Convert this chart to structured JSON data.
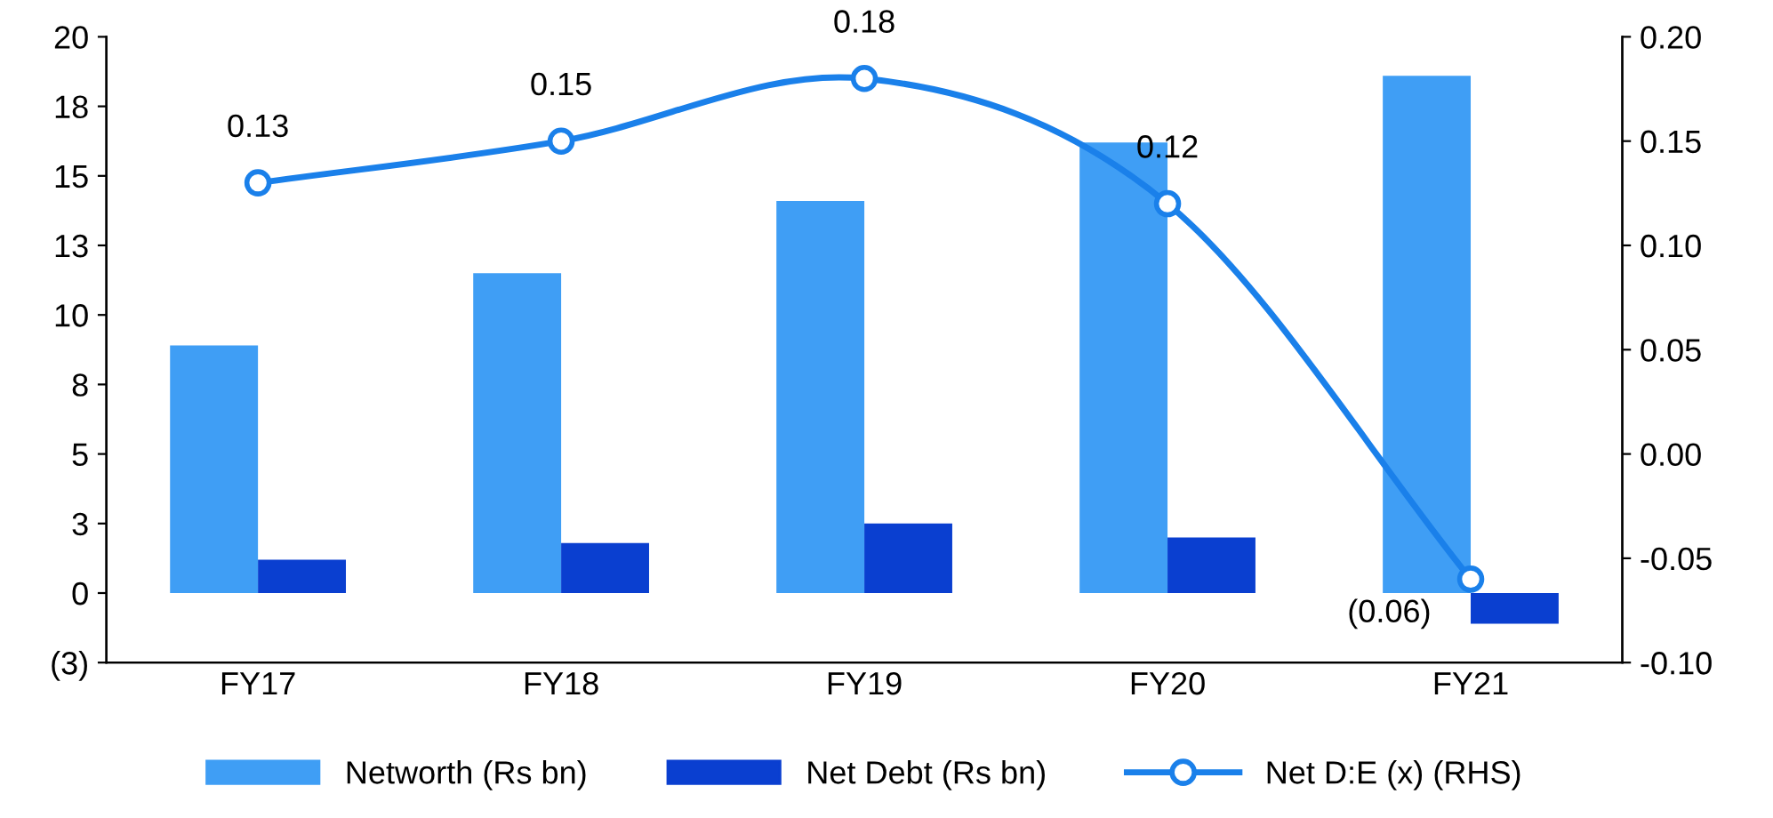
{
  "chart_data": {
    "type": "bar",
    "categories": [
      "FY17",
      "FY18",
      "FY19",
      "FY20",
      "FY21"
    ],
    "series": [
      {
        "name": "Networth (Rs bn)",
        "color": "#3f9ef5",
        "values": [
          8.9,
          11.5,
          14.1,
          16.2,
          18.6
        ]
      },
      {
        "name": "Net Debt (Rs bn)",
        "color": "#0a3fd0",
        "values": [
          1.2,
          1.8,
          2.5,
          2.0,
          -1.1
        ]
      },
      {
        "name": "Net D:E (x) (RHS)",
        "type": "line",
        "axis": "y2",
        "color": "#1a80ea",
        "marker": "circle",
        "values": [
          0.13,
          0.15,
          0.18,
          0.12,
          -0.06
        ],
        "value_labels": [
          "0.13",
          "0.15",
          "0.18",
          "0.12",
          "(0.06)"
        ]
      }
    ],
    "ylim": [
      -2.5,
      20
    ],
    "yticks": [
      {
        "value": -2.5,
        "label": "(3)"
      },
      0,
      {
        "value": 2.5,
        "label": "3"
      },
      5,
      {
        "value": 7.5,
        "label": "8"
      },
      10,
      {
        "value": 12.5,
        "label": "13"
      },
      15,
      {
        "value": 17.5,
        "label": "18"
      },
      20
    ],
    "y2lim": [
      -0.1,
      0.2
    ],
    "y2ticks": [
      {
        "value": -0.1,
        "label": "-0.10"
      },
      {
        "value": -0.05,
        "label": "-0.05"
      },
      {
        "value": 0,
        "label": "0.00"
      },
      {
        "value": 0.05,
        "label": "0.05"
      },
      {
        "value": 0.1,
        "label": "0.10"
      },
      {
        "value": 0.15,
        "label": "0.15"
      },
      {
        "value": 0.2,
        "label": "0.20"
      }
    ],
    "legend": "bottom",
    "grid": false
  }
}
